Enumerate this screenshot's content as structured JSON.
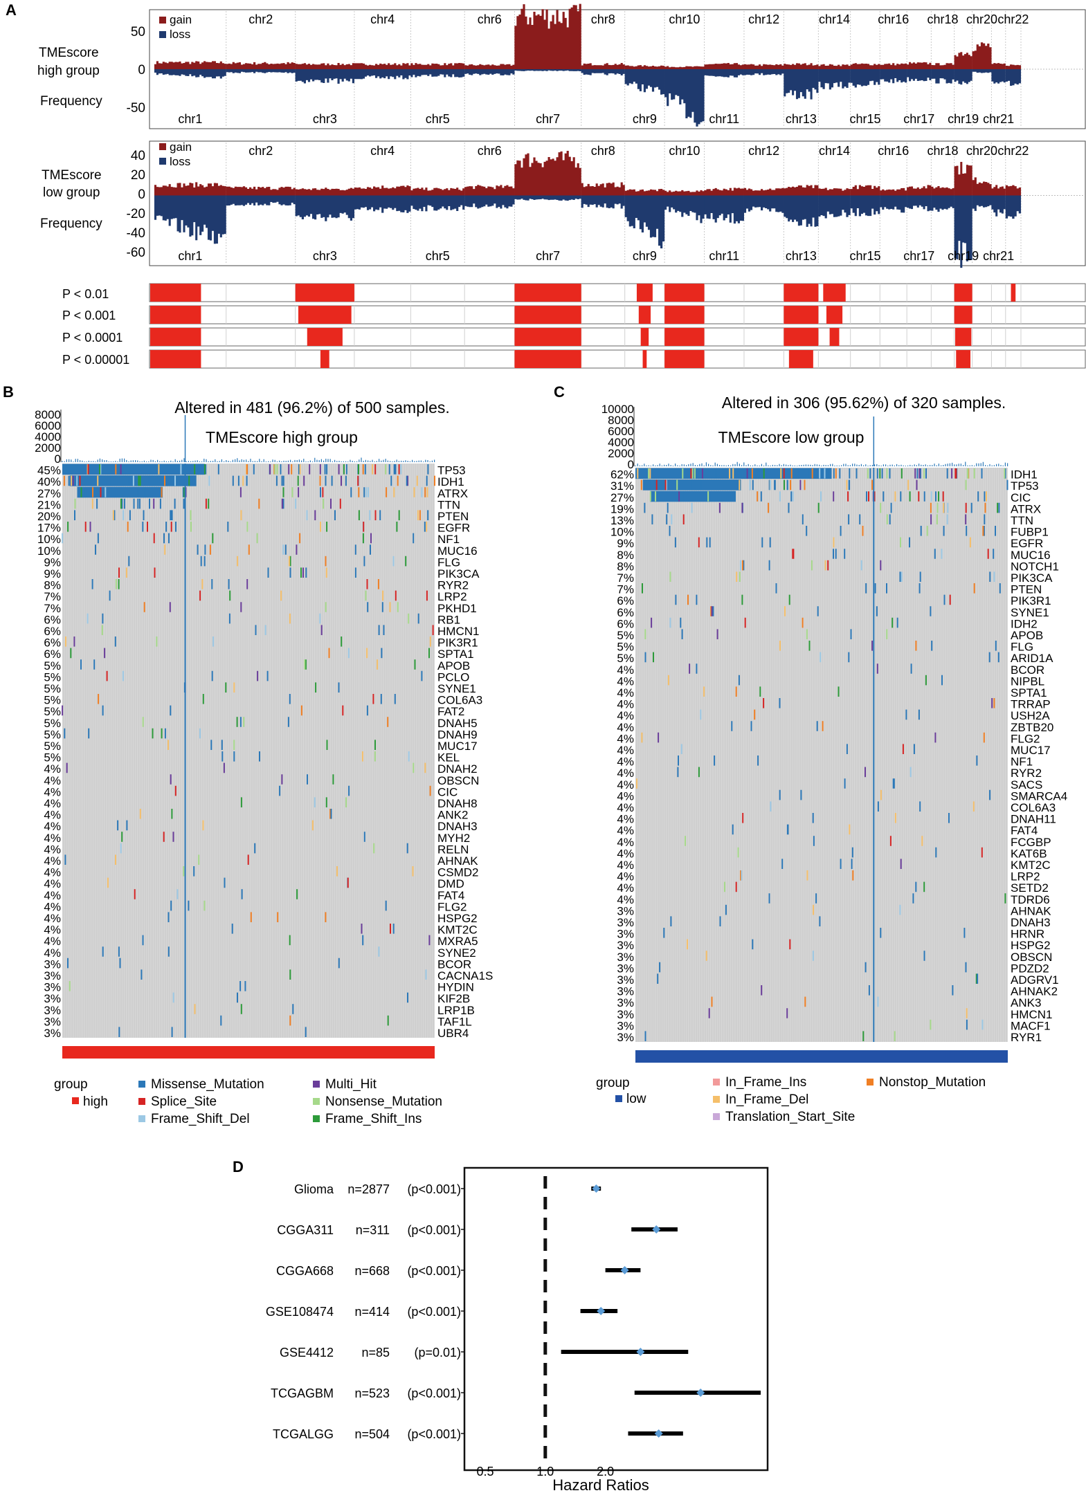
{
  "panels": {
    "A": {
      "label": "A",
      "colors": {
        "gain": "#8b1c1c",
        "loss": "#1f3a6e",
        "sig": "#e8281e"
      },
      "legend": {
        "gain": "gain",
        "loss": "loss"
      },
      "groups": [
        {
          "name_line1": "TMEscore",
          "name_line2": "high group",
          "ylabel": "Frequency",
          "yticks": [
            "50",
            "0",
            "-50"
          ],
          "ylim": [
            -70,
            70
          ]
        },
        {
          "name_line1": "TMEscore",
          "name_line2": "low group",
          "ylabel": "Frequency",
          "yticks": [
            "40",
            "20",
            "0",
            "-20",
            "-40",
            "-60"
          ],
          "ylim": [
            -65,
            50
          ]
        }
      ],
      "chromosomes_top": [
        "chr2",
        "chr4",
        "chr6",
        "chr8",
        "chr10",
        "chr12",
        "chr14",
        "chr16",
        "chr18",
        "chr20",
        "chr22"
      ],
      "chromosomes_bottom": [
        "chr1",
        "chr3",
        "chr5",
        "chr7",
        "chr9",
        "chr11",
        "chr13",
        "chr15",
        "chr17",
        "chr19",
        "chr21"
      ],
      "sig_labels": [
        "P < 0.01",
        "P < 0.001",
        "P < 0.0001",
        "P < 0.00001"
      ]
    },
    "B": {
      "label": "B",
      "title": "Altered in 481 (96.2%) of 500 samples.",
      "group_title": "TMEscore high group",
      "tmb_ticks": [
        "8000",
        "6000",
        "4000",
        "2000",
        "0"
      ],
      "genes": [
        "TP53",
        "IDH1",
        "ATRX",
        "TTN",
        "PTEN",
        "EGFR",
        "NF1",
        "MUC16",
        "FLG",
        "PIK3CA",
        "RYR2",
        "LRP2",
        "PKHD1",
        "RB1",
        "HMCN1",
        "PIK3R1",
        "SPTA1",
        "APOB",
        "PCLO",
        "SYNE1",
        "COL6A3",
        "FAT2",
        "DNAH5",
        "DNAH9",
        "MUC17",
        "KEL",
        "DNAH2",
        "OBSCN",
        "CIC",
        "DNAH8",
        "ANK2",
        "DNAH3",
        "MYH2",
        "RELN",
        "AHNAK",
        "CSMD2",
        "DMD",
        "FAT4",
        "FLG2",
        "HSPG2",
        "KMT2C",
        "MXRA5",
        "SYNE2",
        "BCOR",
        "CACNA1S",
        "HYDIN",
        "KIF2B",
        "LRP1B",
        "TAF1L",
        "UBR4"
      ],
      "percents": [
        "45%",
        "40%",
        "27%",
        "21%",
        "20%",
        "17%",
        "10%",
        "10%",
        "9%",
        "9%",
        "8%",
        "7%",
        "7%",
        "6%",
        "6%",
        "6%",
        "6%",
        "5%",
        "5%",
        "5%",
        "5%",
        "5%",
        "5%",
        "5%",
        "5%",
        "5%",
        "4%",
        "4%",
        "4%",
        "4%",
        "4%",
        "4%",
        "4%",
        "4%",
        "4%",
        "4%",
        "4%",
        "4%",
        "4%",
        "4%",
        "4%",
        "4%",
        "4%",
        "3%",
        "3%",
        "3%",
        "3%",
        "3%",
        "3%",
        "3%"
      ],
      "group_color": "#e8281e"
    },
    "C": {
      "label": "C",
      "title": "Altered in 306 (95.62%) of 320 samples.",
      "group_title": "TMEscore low group",
      "tmb_ticks": [
        "10000",
        "8000",
        "6000",
        "4000",
        "2000",
        "0"
      ],
      "genes": [
        "IDH1",
        "TP53",
        "CIC",
        "ATRX",
        "TTN",
        "FUBP1",
        "EGFR",
        "MUC16",
        "NOTCH1",
        "PIK3CA",
        "PTEN",
        "PIK3R1",
        "SYNE1",
        "IDH2",
        "APOB",
        "FLG",
        "ARID1A",
        "BCOR",
        "NIPBL",
        "SPTA1",
        "TRRAP",
        "USH2A",
        "ZBTB20",
        "FLG2",
        "MUC17",
        "NF1",
        "RYR2",
        "SACS",
        "SMARCA4",
        "COL6A3",
        "DNAH11",
        "FAT4",
        "FCGBP",
        "KAT6B",
        "KMT2C",
        "LRP2",
        "SETD2",
        "TDRD6",
        "AHNAK",
        "DNAH3",
        "HRNR",
        "HSPG2",
        "OBSCN",
        "PDZD2",
        "ADGRV1",
        "AHNAK2",
        "ANK3",
        "HMCN1",
        "MACF1",
        "RYR1"
      ],
      "percents": [
        "62%",
        "31%",
        "27%",
        "19%",
        "13%",
        "10%",
        "9%",
        "8%",
        "8%",
        "7%",
        "7%",
        "6%",
        "6%",
        "6%",
        "5%",
        "5%",
        "5%",
        "4%",
        "4%",
        "4%",
        "4%",
        "4%",
        "4%",
        "4%",
        "4%",
        "4%",
        "4%",
        "4%",
        "4%",
        "4%",
        "4%",
        "4%",
        "4%",
        "4%",
        "4%",
        "4%",
        "4%",
        "4%",
        "3%",
        "3%",
        "3%",
        "3%",
        "3%",
        "3%",
        "3%",
        "3%",
        "3%",
        "3%",
        "3%",
        "3%"
      ],
      "group_color": "#2351a6"
    }
  },
  "legend_B": {
    "group_label": "group",
    "group_value": "high",
    "items": [
      {
        "label": "Missense_Mutation",
        "color": "#2b78b8"
      },
      {
        "label": "Splice_Site",
        "color": "#d62424"
      },
      {
        "label": "Frame_Shift_Del",
        "color": "#9cc8e4"
      },
      {
        "label": "Multi_Hit",
        "color": "#6a3d9a"
      },
      {
        "label": "Nonsense_Mutation",
        "color": "#a6d98a"
      },
      {
        "label": "Frame_Shift_Ins",
        "color": "#2d9b3a"
      }
    ]
  },
  "legend_C": {
    "group_label": "group",
    "group_value": "low",
    "items": [
      {
        "label": "In_Frame_Ins",
        "color": "#f29a9a"
      },
      {
        "label": "In_Frame_Del",
        "color": "#f5bf6a"
      },
      {
        "label": "Translation_Start_Site",
        "color": "#c9a8d8"
      },
      {
        "label": "Nonstop_Mutation",
        "color": "#f07f24"
      }
    ]
  },
  "chart_data": {
    "type": "forest",
    "title": "",
    "panel_label": "D",
    "xlabel": "Hazard Ratios",
    "xticks": [
      "0.5",
      "1.0",
      "2.0"
    ],
    "reference_line": 1.0,
    "rows": [
      {
        "cohort": "Glioma",
        "n": "n=2877",
        "p": "(p<0.001)",
        "hr": 1.8,
        "lo": 1.7,
        "hi": 1.9
      },
      {
        "cohort": "CGGA311",
        "n": "n=311",
        "p": "(p<0.001)",
        "hr": 3.6,
        "lo": 2.7,
        "hi": 4.6
      },
      {
        "cohort": "CGGA668",
        "n": "n=668",
        "p": "(p<0.001)",
        "hr": 2.5,
        "lo": 2.0,
        "hi": 3.0
      },
      {
        "cohort": "GSE108474",
        "n": "n=414",
        "p": "(p<0.001)",
        "hr": 1.9,
        "lo": 1.5,
        "hi": 2.3
      },
      {
        "cohort": "GSE4412",
        "n": "n=85",
        "p": "(p=0.01)",
        "hr": 3.0,
        "lo": 1.2,
        "hi": 5.2
      },
      {
        "cohort": "TCGAGBM",
        "n": "n=523",
        "p": "(p<0.001)",
        "hr": 6.0,
        "lo": 2.8,
        "hi": 12.0
      },
      {
        "cohort": "TCGALGG",
        "n": "n=504",
        "p": "(p<0.001)",
        "hr": 3.7,
        "lo": 2.6,
        "hi": 4.9
      }
    ]
  }
}
